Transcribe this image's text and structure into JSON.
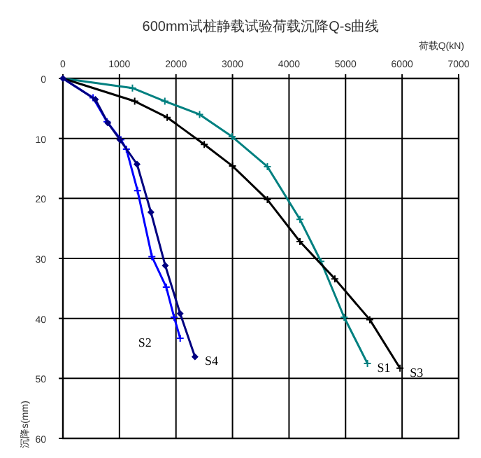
{
  "chart_data": {
    "type": "line",
    "title": "600mm试桩静载试验荷载沉降Q-s曲线",
    "xlabel": "荷载Q(kN)",
    "ylabel": "沉降s(mm)",
    "xlim": [
      0,
      7000
    ],
    "xticks": [
      0,
      1000,
      2000,
      3000,
      4000,
      5000,
      6000,
      7000
    ],
    "ylim": [
      60,
      0
    ],
    "yticks": [
      0,
      10,
      20,
      30,
      40,
      50,
      60
    ],
    "grid": true,
    "series": [
      {
        "name": "S1",
        "color": "#008080",
        "marker": "cross",
        "x": [
          0,
          1230,
          1803,
          2418,
          2992,
          3617,
          4193,
          4564,
          4975,
          5387
        ],
        "values": [
          0,
          1.6,
          3.8,
          6.0,
          9.7,
          14.7,
          23.5,
          30.5,
          39.8,
          47.5
        ]
      },
      {
        "name": "S2",
        "color": "#0000ff",
        "marker": "cross",
        "x": [
          0,
          533,
          779,
          1025,
          1123,
          1320,
          1574,
          1828,
          1967,
          2074
        ],
        "values": [
          0,
          3.2,
          7.2,
          10.2,
          11.8,
          18.7,
          29.7,
          34.8,
          39.8,
          43.3
        ]
      },
      {
        "name": "S3",
        "color": "#000000",
        "marker": "cross",
        "x": [
          0,
          1270,
          1844,
          2500,
          3000,
          3617,
          4193,
          4811,
          5428,
          5963
        ],
        "values": [
          0,
          3.8,
          6.5,
          11.0,
          14.6,
          20.2,
          27.2,
          33.4,
          40.2,
          48.3
        ]
      },
      {
        "name": "S4",
        "color": "#000080",
        "marker": "diamond",
        "x": [
          0,
          574,
          795,
          1008,
          1311,
          1557,
          1811,
          2074,
          2336
        ],
        "values": [
          0,
          3.5,
          7.4,
          10.2,
          14.3,
          22.3,
          31.2,
          39.2,
          46.4
        ]
      }
    ]
  }
}
